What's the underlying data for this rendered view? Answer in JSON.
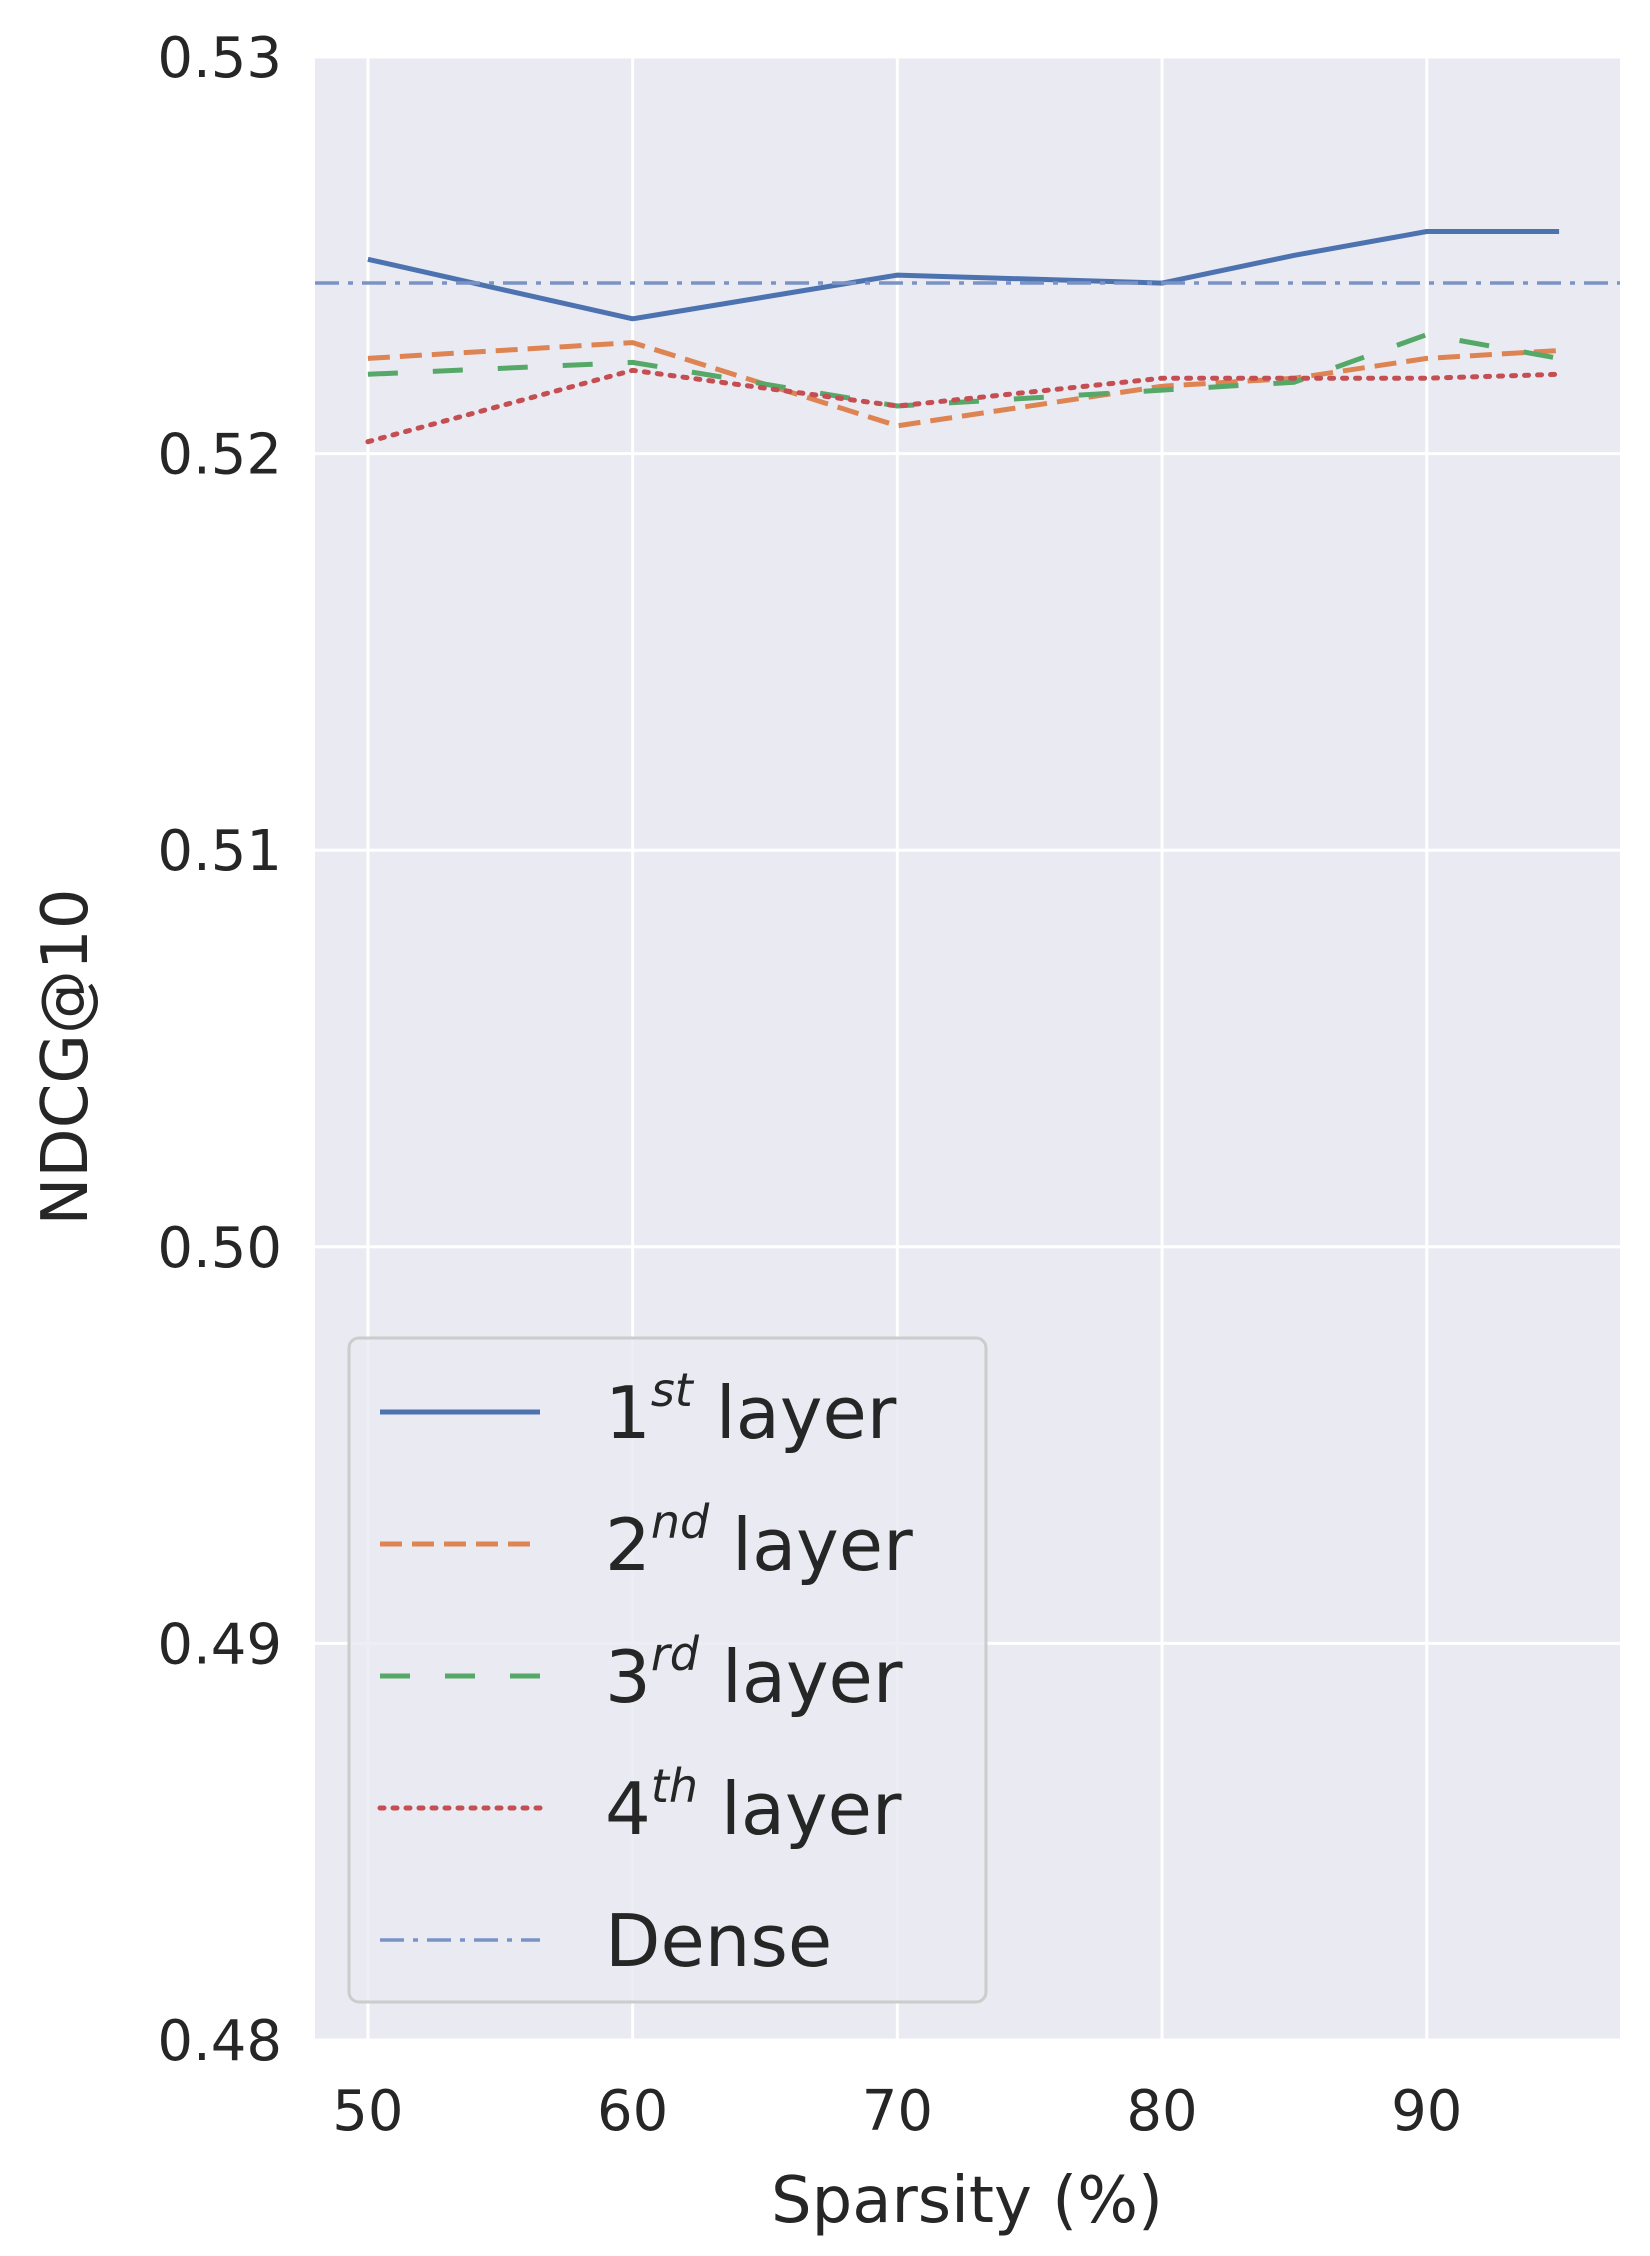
{
  "chart_data": {
    "type": "line",
    "title": "",
    "xlabel": "Sparsity (%)",
    "ylabel": "NDCG@10",
    "xlim": [
      48,
      97.3
    ],
    "ylim": [
      0.48,
      0.53
    ],
    "xticks": [
      50,
      60,
      70,
      80,
      90
    ],
    "xtick_labels": [
      "50",
      "60",
      "70",
      "80",
      "90"
    ],
    "yticks": [
      0.48,
      0.49,
      0.5,
      0.51,
      0.52,
      0.53
    ],
    "ytick_labels": [
      "0.48",
      "0.49",
      "0.50",
      "0.51",
      "0.52",
      "0.53"
    ],
    "grid": true,
    "legend_position": "lower-left",
    "series": [
      {
        "name_base": "1",
        "name_sup": "st",
        "name_rest": " layer",
        "color": "#4c72b0",
        "dash": "solid",
        "x": [
          50,
          60,
          70,
          80,
          85,
          90,
          95
        ],
        "y": [
          0.5249,
          0.5234,
          0.5245,
          0.5243,
          0.525,
          0.5256,
          0.5256
        ]
      },
      {
        "name_base": "2",
        "name_sup": "nd",
        "name_rest": " layer",
        "color": "#dd8452",
        "dash": "dashed",
        "x": [
          50,
          60,
          70,
          80,
          85,
          90,
          95
        ],
        "y": [
          0.5224,
          0.5228,
          0.5207,
          0.5217,
          0.5219,
          0.5224,
          0.5226
        ]
      },
      {
        "name_base": "3",
        "name_sup": "rd",
        "name_rest": " layer",
        "color": "#55a868",
        "dash": "loosely-dashed",
        "x": [
          50,
          60,
          70,
          80,
          85,
          90,
          95
        ],
        "y": [
          0.522,
          0.5223,
          0.5212,
          0.5216,
          0.5218,
          0.523,
          0.5224
        ]
      },
      {
        "name_base": "4",
        "name_sup": "th",
        "name_rest": " layer",
        "color": "#c44e52",
        "dash": "dotted",
        "x": [
          50,
          60,
          70,
          80,
          85,
          90,
          95
        ],
        "y": [
          0.5203,
          0.5221,
          0.5212,
          0.5219,
          0.5219,
          0.5219,
          0.522
        ]
      },
      {
        "name_base": "Dense",
        "name_sup": "",
        "name_rest": "",
        "color": "#7b93c4",
        "dash": "dashdot",
        "horizontal": true,
        "y_value": 0.5243
      }
    ]
  }
}
